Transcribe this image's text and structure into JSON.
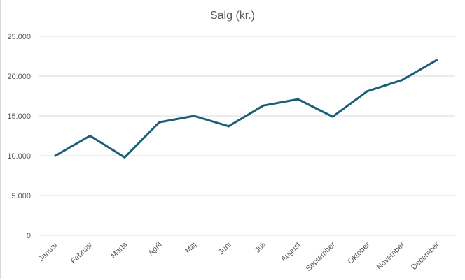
{
  "chart_data": {
    "type": "line",
    "title": "Salg (kr.)",
    "categories": [
      "Januar",
      "Februar",
      "Marts",
      "April",
      "Maj",
      "Juni",
      "Juli",
      "August",
      "September",
      "Oktober",
      "November",
      "December"
    ],
    "series": [
      {
        "values": [
          10000,
          12500,
          9800,
          14200,
          15000,
          13700,
          16300,
          17100,
          14900,
          18100,
          19500,
          22000
        ]
      }
    ],
    "yticks": [
      "0",
      "5.000",
      "10.000",
      "15.000",
      "20.000",
      "25.000"
    ],
    "ylim": [
      0,
      25000
    ],
    "grid": true,
    "legend": "none",
    "colors": {
      "line": "#1b5e78",
      "grid": "#d9d9d9",
      "text": "#595959"
    }
  }
}
